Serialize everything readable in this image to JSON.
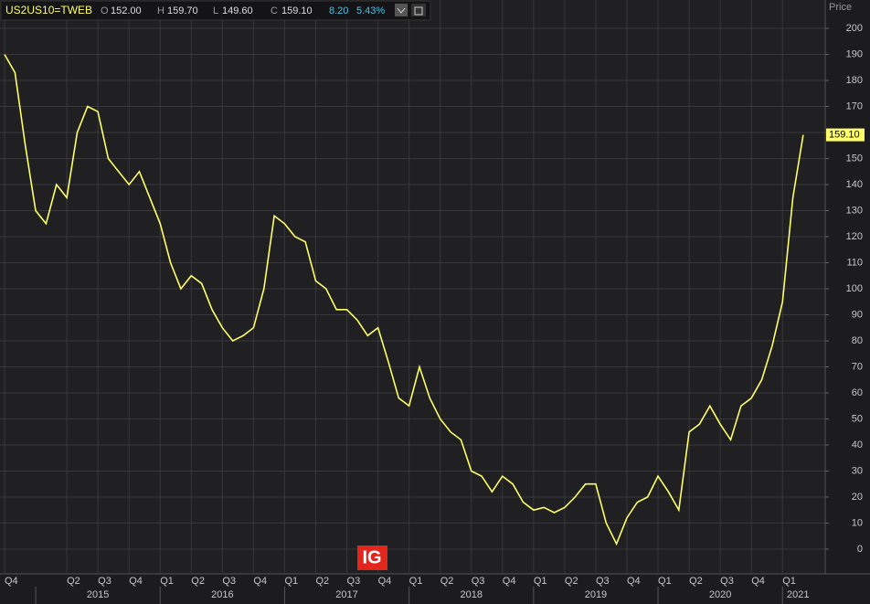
{
  "header": {
    "symbol": "US2US10=TWEB",
    "open_key": "O",
    "open": "152.00",
    "high_key": "H",
    "high": "159.70",
    "low_key": "L",
    "low": "149.60",
    "close_key": "C",
    "close": "159.10",
    "change": "8.20",
    "change_pct": "5.43%"
  },
  "watermark": "IG",
  "chart_data": {
    "type": "line",
    "y_axis_title": "Price",
    "categories": [
      "Q4",
      null,
      null,
      null,
      null,
      null,
      "Q2",
      null,
      null,
      "Q3",
      null,
      null,
      "Q4",
      null,
      null,
      "Q1",
      null,
      null,
      "Q2",
      null,
      null,
      "Q3",
      null,
      null,
      "Q4",
      null,
      null,
      "Q1",
      null,
      null,
      "Q2",
      null,
      null,
      "Q3",
      null,
      null,
      "Q4",
      null,
      null,
      "Q1",
      null,
      null,
      "Q2",
      null,
      null,
      "Q3",
      null,
      null,
      "Q4",
      null,
      null,
      "Q1",
      null,
      null,
      "Q2",
      null,
      null,
      "Q3",
      null,
      null,
      "Q4",
      null,
      null,
      "Q1",
      null,
      null,
      "Q2",
      null,
      null,
      "Q3",
      null,
      null,
      "Q4",
      null,
      null,
      "Q1",
      null,
      null
    ],
    "year_labels": [
      "2015",
      "2016",
      "2017",
      "2018",
      "2019",
      "2020",
      "2021"
    ],
    "series": [
      {
        "name": "US2US10=TWEB",
        "color": "#ffff66",
        "values": [
          190,
          183,
          155,
          130,
          125,
          140,
          135,
          160,
          170,
          168,
          150,
          145,
          140,
          145,
          135,
          125,
          110,
          100,
          105,
          102,
          92,
          85,
          80,
          82,
          85,
          100,
          128,
          125,
          120,
          118,
          103,
          100,
          92,
          92,
          88,
          82,
          85,
          72,
          58,
          55,
          70,
          58,
          50,
          45,
          42,
          30,
          28,
          22,
          28,
          25,
          18,
          15,
          16,
          14,
          16,
          20,
          25,
          25,
          10,
          2,
          12,
          18,
          20,
          28,
          22,
          15,
          45,
          48,
          55,
          48,
          42,
          55,
          58,
          65,
          78,
          95,
          135,
          159.1
        ]
      }
    ],
    "last_price": {
      "value": 159.1,
      "label": "159.10"
    },
    "ylim": [
      -9.5,
      210.9
    ],
    "yticks": [
      0,
      10,
      20,
      30,
      40,
      50,
      60,
      70,
      80,
      90,
      100,
      110,
      120,
      130,
      140,
      150,
      160,
      170,
      180,
      190,
      200
    ],
    "grid": true
  }
}
